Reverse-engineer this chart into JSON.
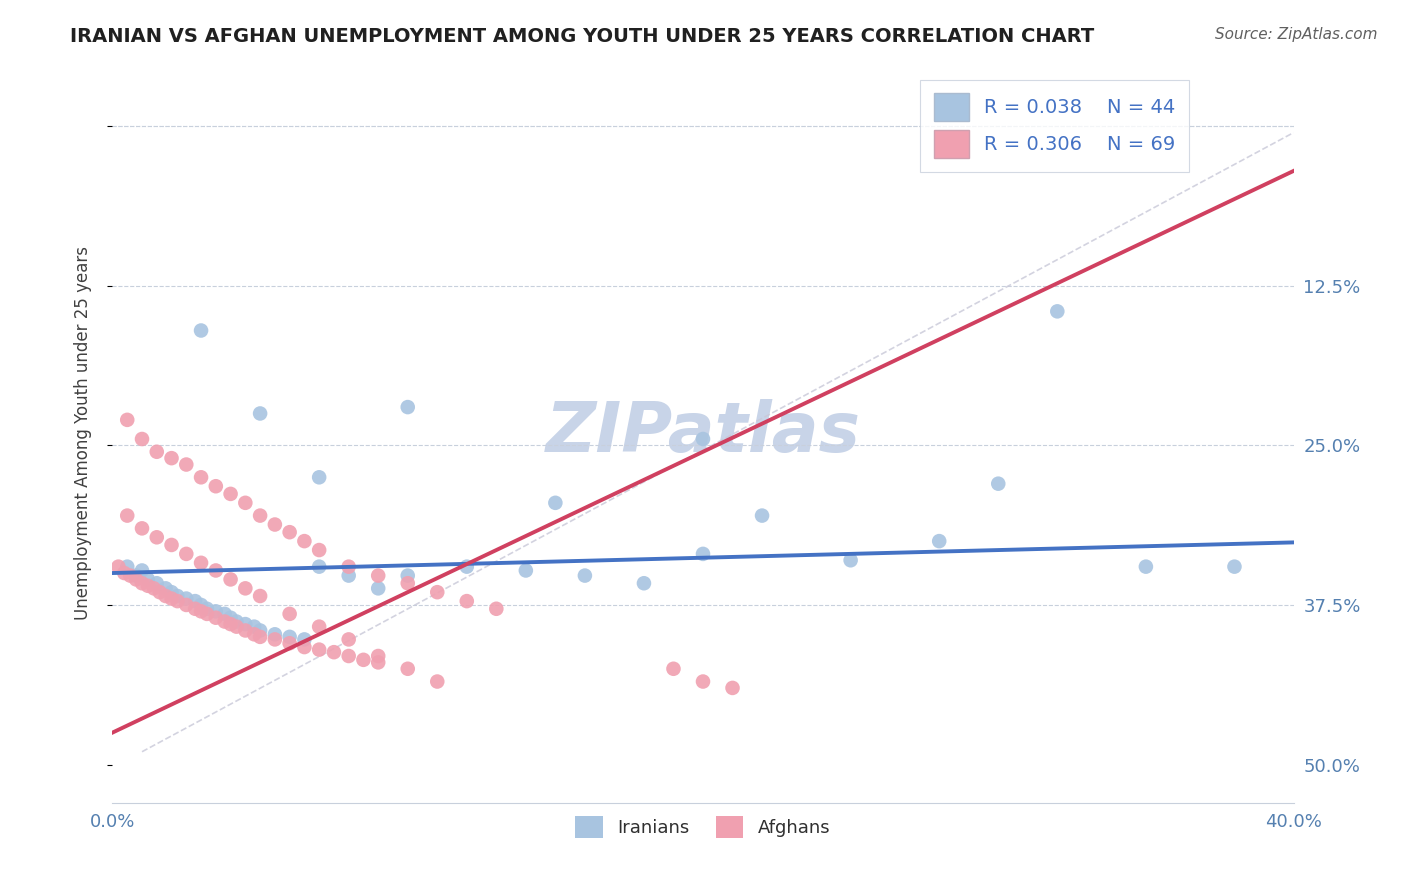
{
  "title": "IRANIAN VS AFGHAN UNEMPLOYMENT AMONG YOUTH UNDER 25 YEARS CORRELATION CHART",
  "source": "Source: ZipAtlas.com",
  "ylabel": "Unemployment Among Youth under 25 years",
  "xlim": [
    0.0,
    0.4
  ],
  "ylim": [
    -0.03,
    0.55
  ],
  "yticks": [
    0.0,
    0.125,
    0.25,
    0.375,
    0.5
  ],
  "ytick_labels": [
    "",
    "",
    "",
    "",
    ""
  ],
  "ytick_labels_right": [
    "50.0%",
    "37.5%",
    "25.0%",
    "12.5%",
    ""
  ],
  "xticks": [
    0.0,
    0.1,
    0.2,
    0.3,
    0.4
  ],
  "xtick_labels": [
    "0.0%",
    "",
    "",
    "",
    "40.0%"
  ],
  "iranian_R": 0.038,
  "iranian_N": 44,
  "afghan_R": 0.306,
  "afghan_N": 69,
  "iranian_color": "#a8c4e0",
  "afghan_color": "#f0a0b0",
  "iranian_line_color": "#4472c4",
  "afghan_line_color": "#d04060",
  "diag_line_color": "#c8c8d8",
  "watermark": "ZIPatlas",
  "watermark_color": "#c8d4e8",
  "iranian_x": [
    0.005,
    0.008,
    0.01,
    0.012,
    0.015,
    0.018,
    0.02,
    0.022,
    0.025,
    0.028,
    0.03,
    0.032,
    0.035,
    0.038,
    0.04,
    0.042,
    0.045,
    0.048,
    0.05,
    0.055,
    0.06,
    0.065,
    0.07,
    0.08,
    0.09,
    0.1,
    0.12,
    0.14,
    0.16,
    0.18,
    0.2,
    0.22,
    0.25,
    0.28,
    0.3,
    0.32,
    0.35,
    0.38,
    0.03,
    0.05,
    0.07,
    0.1,
    0.15,
    0.2
  ],
  "iranian_y": [
    0.155,
    0.148,
    0.152,
    0.145,
    0.142,
    0.138,
    0.135,
    0.132,
    0.13,
    0.128,
    0.125,
    0.122,
    0.12,
    0.118,
    0.115,
    0.112,
    0.11,
    0.108,
    0.105,
    0.102,
    0.1,
    0.098,
    0.155,
    0.148,
    0.138,
    0.148,
    0.155,
    0.152,
    0.148,
    0.142,
    0.165,
    0.195,
    0.16,
    0.175,
    0.22,
    0.355,
    0.155,
    0.155,
    0.34,
    0.275,
    0.225,
    0.28,
    0.205,
    0.255
  ],
  "afghan_x": [
    0.002,
    0.004,
    0.006,
    0.008,
    0.01,
    0.012,
    0.014,
    0.016,
    0.018,
    0.02,
    0.022,
    0.025,
    0.028,
    0.03,
    0.032,
    0.035,
    0.038,
    0.04,
    0.042,
    0.045,
    0.048,
    0.05,
    0.055,
    0.06,
    0.065,
    0.07,
    0.075,
    0.08,
    0.085,
    0.09,
    0.005,
    0.01,
    0.015,
    0.02,
    0.025,
    0.03,
    0.035,
    0.04,
    0.045,
    0.05,
    0.055,
    0.06,
    0.065,
    0.07,
    0.08,
    0.09,
    0.1,
    0.11,
    0.12,
    0.13,
    0.005,
    0.01,
    0.015,
    0.02,
    0.025,
    0.03,
    0.035,
    0.04,
    0.045,
    0.05,
    0.06,
    0.07,
    0.08,
    0.09,
    0.1,
    0.11,
    0.19,
    0.2,
    0.21
  ],
  "afghan_y": [
    0.155,
    0.15,
    0.148,
    0.145,
    0.142,
    0.14,
    0.138,
    0.135,
    0.132,
    0.13,
    0.128,
    0.125,
    0.122,
    0.12,
    0.118,
    0.115,
    0.112,
    0.11,
    0.108,
    0.105,
    0.102,
    0.1,
    0.098,
    0.095,
    0.092,
    0.09,
    0.088,
    0.085,
    0.082,
    0.08,
    0.27,
    0.255,
    0.245,
    0.24,
    0.235,
    0.225,
    0.218,
    0.212,
    0.205,
    0.195,
    0.188,
    0.182,
    0.175,
    0.168,
    0.155,
    0.148,
    0.142,
    0.135,
    0.128,
    0.122,
    0.195,
    0.185,
    0.178,
    0.172,
    0.165,
    0.158,
    0.152,
    0.145,
    0.138,
    0.132,
    0.118,
    0.108,
    0.098,
    0.085,
    0.075,
    0.065,
    0.075,
    0.065,
    0.06
  ]
}
